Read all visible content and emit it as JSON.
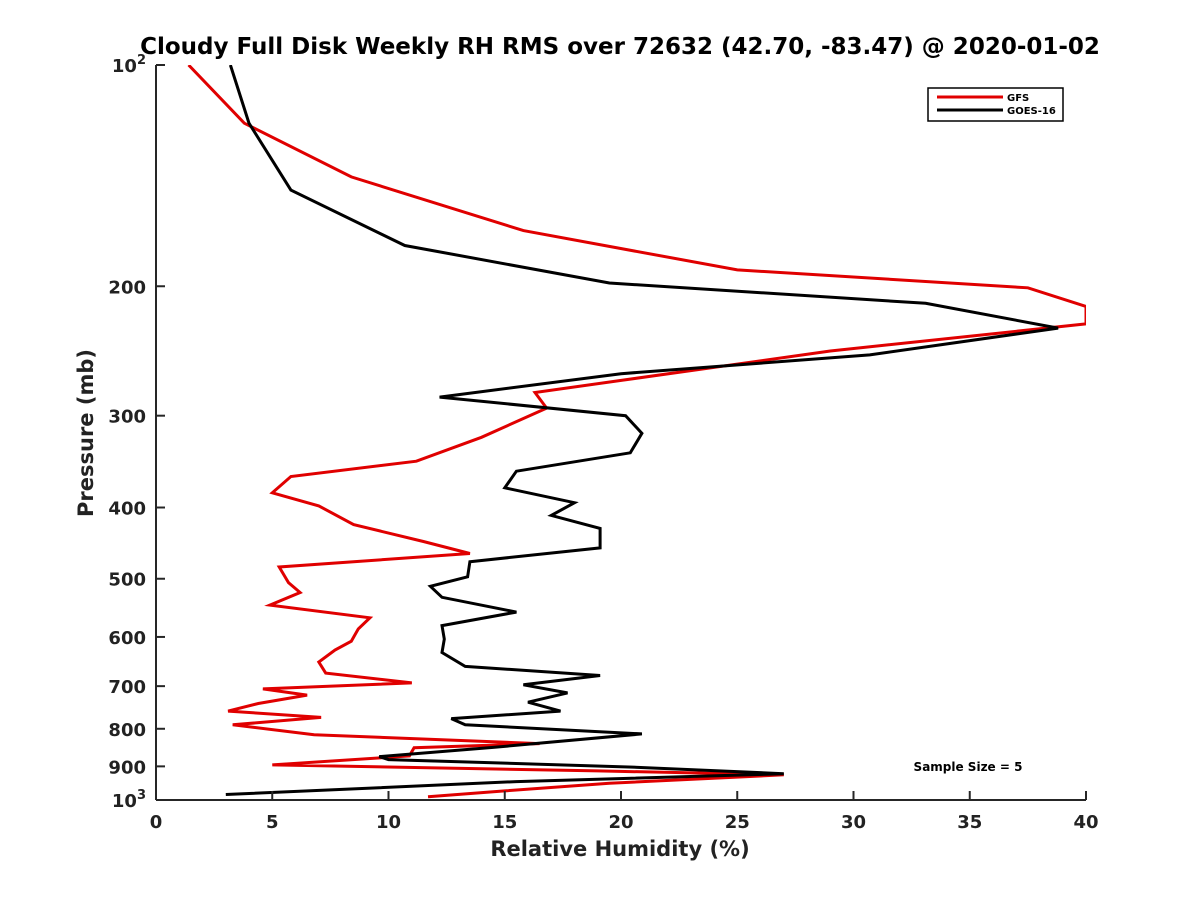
{
  "chart_data": {
    "type": "line",
    "title": "Cloudy Full Disk Weekly RH RMS over 72632 (42.70, -83.47) @ 2020-01-02",
    "xlabel": "Relative Humidity (%)",
    "ylabel": "Pressure (mb)",
    "xlim": [
      0,
      40
    ],
    "ylim": [
      100,
      1000
    ],
    "y_scale": "log",
    "y_reversed": true,
    "grid": false,
    "legend_position": "top-right",
    "x_ticks": [
      "0",
      "5",
      "10",
      "15",
      "20",
      "25",
      "30",
      "35",
      "40"
    ],
    "x_tick_values": [
      0,
      5,
      10,
      15,
      20,
      25,
      30,
      35,
      40
    ],
    "y_ticks": [
      {
        "value": 100,
        "label": "10",
        "sup": "2"
      },
      {
        "value": 200,
        "label": "200"
      },
      {
        "value": 300,
        "label": "300"
      },
      {
        "value": 400,
        "label": "400"
      },
      {
        "value": 500,
        "label": "500"
      },
      {
        "value": 600,
        "label": "600"
      },
      {
        "value": 700,
        "label": "700"
      },
      {
        "value": 800,
        "label": "800"
      },
      {
        "value": 900,
        "label": "900"
      },
      {
        "value": 1000,
        "label": "10",
        "sup": "3"
      }
    ],
    "annotation": "Sample Size = 5",
    "series": [
      {
        "name": "GFS",
        "color": "#e00000",
        "points": [
          [
            1.4,
            100
          ],
          [
            3.8,
            120
          ],
          [
            8.4,
            142
          ],
          [
            15.8,
            168
          ],
          [
            25,
            190
          ],
          [
            37.5,
            201
          ],
          [
            40,
            213
          ],
          [
            40,
            225
          ],
          [
            29,
            245
          ],
          [
            16.3,
            279
          ],
          [
            16.8,
            293
          ],
          [
            14,
            321
          ],
          [
            11.2,
            346
          ],
          [
            5.8,
            363
          ],
          [
            5,
            382
          ],
          [
            7,
            398
          ],
          [
            8.5,
            422
          ],
          [
            11.5,
            445
          ],
          [
            13.5,
            462
          ],
          [
            5.3,
            482
          ],
          [
            5.7,
            506
          ],
          [
            6.2,
            522
          ],
          [
            4.9,
            543
          ],
          [
            9.2,
            565
          ],
          [
            8.7,
            585
          ],
          [
            8.4,
            608
          ],
          [
            7.7,
            625
          ],
          [
            7,
            649
          ],
          [
            7.3,
            672
          ],
          [
            11,
            693
          ],
          [
            4.6,
            706
          ],
          [
            6.5,
            720
          ],
          [
            4.4,
            739
          ],
          [
            3.1,
            757
          ],
          [
            7.1,
            772
          ],
          [
            3.3,
            790
          ],
          [
            6.8,
            815
          ],
          [
            16.5,
            838
          ],
          [
            11.1,
            849
          ],
          [
            10.9,
            871
          ],
          [
            5,
            896
          ],
          [
            19,
            913
          ],
          [
            27,
            924
          ],
          [
            19.5,
            949
          ],
          [
            15,
            972
          ],
          [
            11.7,
            990
          ]
        ]
      },
      {
        "name": "GOES-16",
        "color": "#000000",
        "points": [
          [
            3.2,
            100
          ],
          [
            4,
            120
          ],
          [
            5.8,
            148
          ],
          [
            10.7,
            176
          ],
          [
            19.5,
            198
          ],
          [
            33.1,
            211
          ],
          [
            38.8,
            228
          ],
          [
            30.7,
            248
          ],
          [
            20,
            263
          ],
          [
            12.2,
            283
          ],
          [
            20.2,
            300
          ],
          [
            20.9,
            317
          ],
          [
            20.4,
            337
          ],
          [
            15.5,
            357
          ],
          [
            15,
            376
          ],
          [
            18,
            394
          ],
          [
            17,
            410
          ],
          [
            19.1,
            427
          ],
          [
            19.1,
            454
          ],
          [
            13.5,
            474
          ],
          [
            13.4,
            497
          ],
          [
            11.8,
            512
          ],
          [
            12.3,
            530
          ],
          [
            15.5,
            555
          ],
          [
            12.3,
            579
          ],
          [
            12.4,
            604
          ],
          [
            12.3,
            630
          ],
          [
            13.3,
            658
          ],
          [
            19.1,
            677
          ],
          [
            15.8,
            697
          ],
          [
            17.7,
            715
          ],
          [
            16,
            736
          ],
          [
            17.4,
            757
          ],
          [
            12.7,
            775
          ],
          [
            13.3,
            790
          ],
          [
            20.9,
            813
          ],
          [
            14.5,
            848
          ],
          [
            9.6,
            873
          ],
          [
            10,
            881
          ],
          [
            20.5,
            902
          ],
          [
            27,
            921
          ],
          [
            15.5,
            944
          ],
          [
            3,
            983
          ]
        ]
      }
    ]
  }
}
